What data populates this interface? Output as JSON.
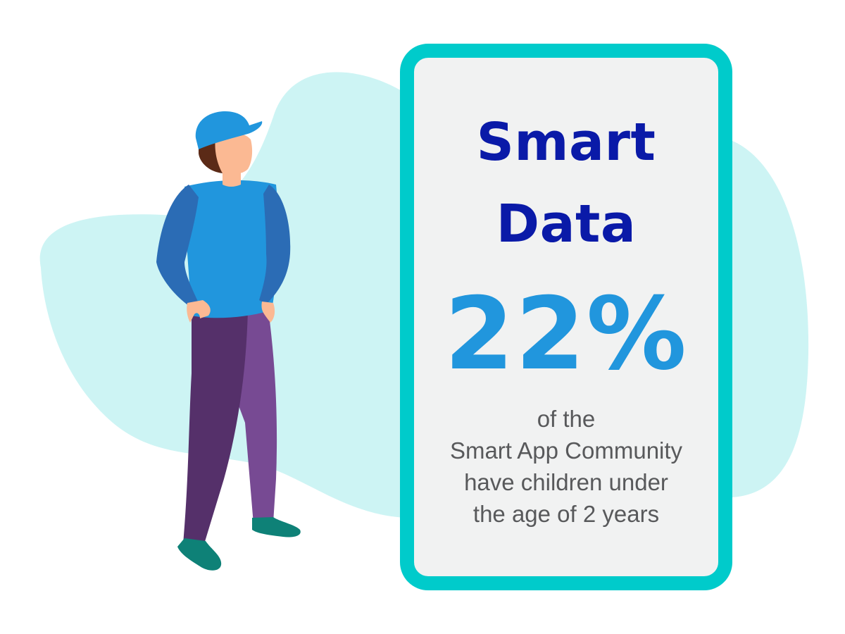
{
  "card": {
    "title_lines": [
      "Smart",
      "Data"
    ],
    "stat": "22%",
    "description_lines": [
      "of the",
      "Smart App Community",
      "have children under",
      "the age of 2 years"
    ]
  },
  "illustration": {
    "figure": "person-in-cap-icon",
    "background_shape": "blob-shape"
  },
  "colors": {
    "blob": "#cdf4f4",
    "card_border": "#00cbcb",
    "card_fill": "#f1f2f2",
    "title": "#0a1aa8",
    "stat": "#2196dd",
    "description": "#58595b",
    "cap": "#2196dd",
    "shirt": "#2196dd",
    "sleeves": "#2b6cb5",
    "pants_dark": "#55306a",
    "pants_light": "#774a93",
    "shoes": "#0e8177",
    "skin": "#fbb993",
    "hair": "#5b2a17"
  }
}
